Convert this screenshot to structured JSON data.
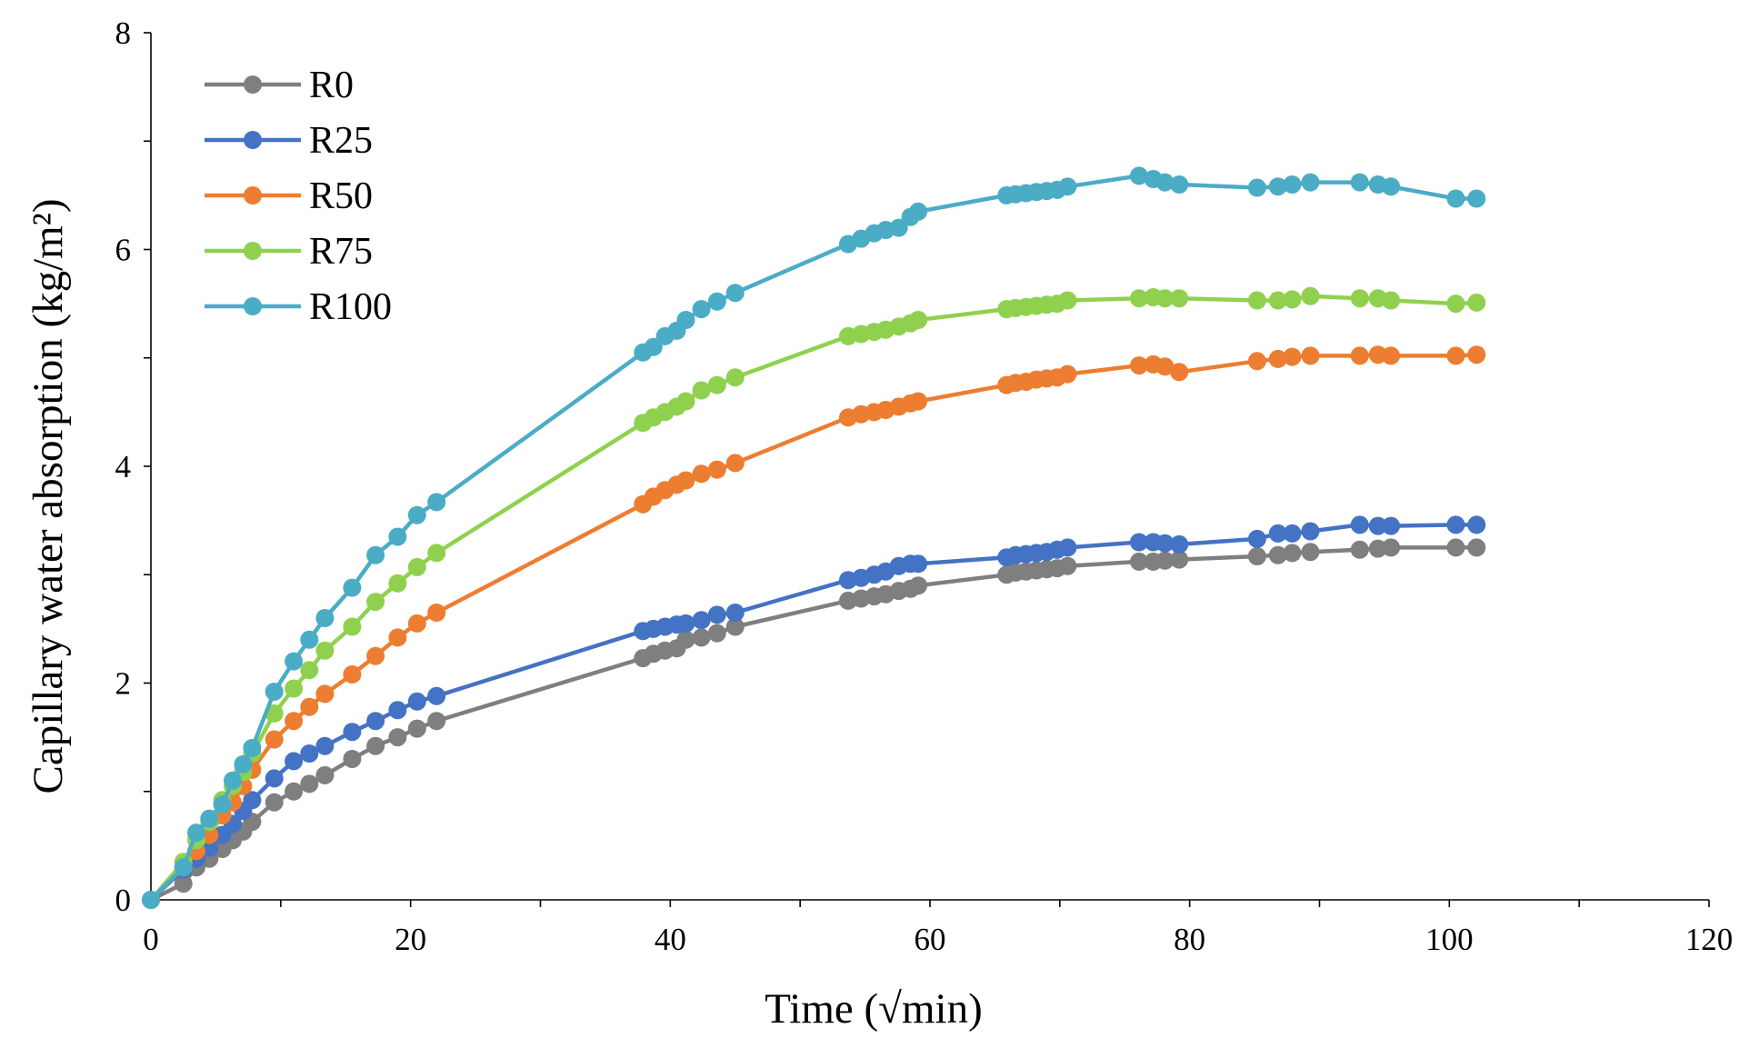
{
  "chart_data": {
    "type": "line",
    "title": "",
    "xlabel": "Time (√min)",
    "ylabel": "Capillary water absorption (kg/m²)",
    "xlim": [
      0,
      120
    ],
    "ylim": [
      0,
      8
    ],
    "xticks": [
      0,
      20,
      40,
      60,
      80,
      100,
      120
    ],
    "yticks": [
      0,
      2,
      4,
      6,
      8
    ],
    "grid": false,
    "legend_position": "top-left",
    "series": [
      {
        "name": "R0",
        "color": "#7f7f7f",
        "x": [
          0,
          2.5,
          3.5,
          4.5,
          5.5,
          6.3,
          7.1,
          7.8,
          9.5,
          11,
          12.2,
          13.4,
          15.5,
          17.3,
          19,
          20.5,
          22,
          37.9,
          38.7,
          39.6,
          40.5,
          41.2,
          42.4,
          43.6,
          45,
          53.7,
          54.7,
          55.7,
          56.6,
          57.6,
          58.5,
          59.1,
          65.9,
          66.6,
          67.4,
          68.2,
          69,
          69.8,
          70.6,
          76.1,
          77.2,
          78.1,
          79.2,
          85.2,
          86.8,
          87.9,
          89.3,
          93.1,
          94.5,
          95.5,
          100.5,
          102.1
        ],
        "values": [
          0,
          0.15,
          0.3,
          0.38,
          0.47,
          0.55,
          0.63,
          0.72,
          0.9,
          1.0,
          1.07,
          1.15,
          1.3,
          1.42,
          1.5,
          1.58,
          1.65,
          2.23,
          2.27,
          2.3,
          2.32,
          2.4,
          2.42,
          2.46,
          2.52,
          2.76,
          2.78,
          2.8,
          2.82,
          2.85,
          2.87,
          2.9,
          3.0,
          3.02,
          3.03,
          3.04,
          3.05,
          3.06,
          3.08,
          3.12,
          3.12,
          3.13,
          3.14,
          3.17,
          3.18,
          3.2,
          3.21,
          3.23,
          3.24,
          3.25,
          3.25,
          3.25
        ]
      },
      {
        "name": "R25",
        "color": "#4472c4",
        "x": [
          0,
          2.5,
          3.5,
          4.5,
          5.5,
          6.3,
          7.1,
          7.8,
          9.5,
          11,
          12.2,
          13.4,
          15.5,
          17.3,
          19,
          20.5,
          22,
          37.9,
          38.7,
          39.6,
          40.5,
          41.2,
          42.4,
          43.6,
          45,
          53.7,
          54.7,
          55.7,
          56.6,
          57.6,
          58.5,
          59.1,
          65.9,
          66.6,
          67.4,
          68.2,
          69,
          69.8,
          70.6,
          76.1,
          77.2,
          78.1,
          79.2,
          85.2,
          86.8,
          87.9,
          89.3,
          93.1,
          94.5,
          95.5,
          100.5,
          102.1
        ],
        "values": [
          0,
          0.28,
          0.38,
          0.48,
          0.6,
          0.7,
          0.82,
          0.92,
          1.12,
          1.28,
          1.35,
          1.42,
          1.55,
          1.65,
          1.75,
          1.83,
          1.88,
          2.48,
          2.5,
          2.52,
          2.54,
          2.55,
          2.58,
          2.63,
          2.65,
          2.95,
          2.97,
          3.0,
          3.03,
          3.08,
          3.1,
          3.1,
          3.16,
          3.18,
          3.19,
          3.2,
          3.21,
          3.23,
          3.25,
          3.3,
          3.3,
          3.29,
          3.28,
          3.33,
          3.38,
          3.38,
          3.4,
          3.46,
          3.45,
          3.45,
          3.46,
          3.46
        ]
      },
      {
        "name": "R50",
        "color": "#ed7d31",
        "x": [
          0,
          2.5,
          3.5,
          4.5,
          5.5,
          6.3,
          7.1,
          7.8,
          9.5,
          11,
          12.2,
          13.4,
          15.5,
          17.3,
          19,
          20.5,
          22,
          37.9,
          38.7,
          39.6,
          40.5,
          41.2,
          42.4,
          43.6,
          45,
          53.7,
          54.7,
          55.7,
          56.6,
          57.6,
          58.5,
          59.1,
          65.9,
          66.6,
          67.4,
          68.2,
          69,
          69.8,
          70.6,
          76.1,
          77.2,
          78.1,
          79.2,
          85.2,
          86.8,
          87.9,
          89.3,
          93.1,
          94.5,
          95.5,
          100.5,
          102.1
        ],
        "values": [
          0,
          0.3,
          0.45,
          0.6,
          0.78,
          0.9,
          1.05,
          1.2,
          1.48,
          1.65,
          1.78,
          1.9,
          2.08,
          2.25,
          2.42,
          2.55,
          2.65,
          3.65,
          3.72,
          3.78,
          3.83,
          3.87,
          3.93,
          3.97,
          4.03,
          4.45,
          4.48,
          4.5,
          4.52,
          4.55,
          4.58,
          4.6,
          4.75,
          4.77,
          4.78,
          4.8,
          4.81,
          4.82,
          4.85,
          4.93,
          4.94,
          4.92,
          4.87,
          4.97,
          4.99,
          5.01,
          5.02,
          5.02,
          5.03,
          5.02,
          5.02,
          5.03
        ]
      },
      {
        "name": "R75",
        "color": "#8fd14f",
        "x": [
          0,
          2.5,
          3.5,
          4.5,
          5.5,
          6.3,
          7.1,
          7.8,
          9.5,
          11,
          12.2,
          13.4,
          15.5,
          17.3,
          19,
          20.5,
          22,
          37.9,
          38.7,
          39.6,
          40.5,
          41.2,
          42.4,
          43.6,
          45,
          53.7,
          54.7,
          55.7,
          56.6,
          57.6,
          58.5,
          59.1,
          65.9,
          66.6,
          67.4,
          68.2,
          69,
          69.8,
          70.6,
          76.1,
          77.2,
          78.1,
          79.2,
          85.2,
          86.8,
          87.9,
          89.3,
          93.1,
          94.5,
          95.5,
          100.5,
          102.1
        ],
        "values": [
          0,
          0.35,
          0.55,
          0.72,
          0.92,
          1.05,
          1.18,
          1.35,
          1.72,
          1.95,
          2.12,
          2.3,
          2.52,
          2.75,
          2.92,
          3.07,
          3.2,
          4.4,
          4.45,
          4.5,
          4.55,
          4.6,
          4.7,
          4.75,
          4.82,
          5.2,
          5.22,
          5.24,
          5.26,
          5.29,
          5.32,
          5.35,
          5.45,
          5.46,
          5.47,
          5.48,
          5.49,
          5.5,
          5.53,
          5.55,
          5.56,
          5.55,
          5.55,
          5.53,
          5.53,
          5.54,
          5.57,
          5.55,
          5.55,
          5.53,
          5.5,
          5.51
        ]
      },
      {
        "name": "R100",
        "color": "#4bacc6",
        "x": [
          0,
          2.5,
          3.5,
          4.5,
          5.5,
          6.3,
          7.1,
          7.8,
          9.5,
          11,
          12.2,
          13.4,
          15.5,
          17.3,
          19,
          20.5,
          22,
          37.9,
          38.7,
          39.6,
          40.5,
          41.2,
          42.4,
          43.6,
          45,
          53.7,
          54.7,
          55.7,
          56.6,
          57.6,
          58.5,
          59.1,
          65.9,
          66.6,
          67.4,
          68.2,
          69,
          69.8,
          70.6,
          76.1,
          77.2,
          78.1,
          79.2,
          85.2,
          86.8,
          87.9,
          89.3,
          93.1,
          94.5,
          95.5,
          100.5,
          102.1
        ],
        "values": [
          0,
          0.3,
          0.62,
          0.75,
          0.88,
          1.1,
          1.25,
          1.4,
          1.92,
          2.2,
          2.4,
          2.6,
          2.88,
          3.18,
          3.35,
          3.55,
          3.67,
          5.05,
          5.1,
          5.2,
          5.25,
          5.35,
          5.45,
          5.52,
          5.6,
          6.05,
          6.1,
          6.15,
          6.18,
          6.2,
          6.3,
          6.35,
          6.5,
          6.51,
          6.52,
          6.53,
          6.54,
          6.55,
          6.58,
          6.68,
          6.65,
          6.62,
          6.6,
          6.57,
          6.58,
          6.6,
          6.62,
          6.62,
          6.6,
          6.58,
          6.47,
          6.47
        ]
      }
    ]
  }
}
